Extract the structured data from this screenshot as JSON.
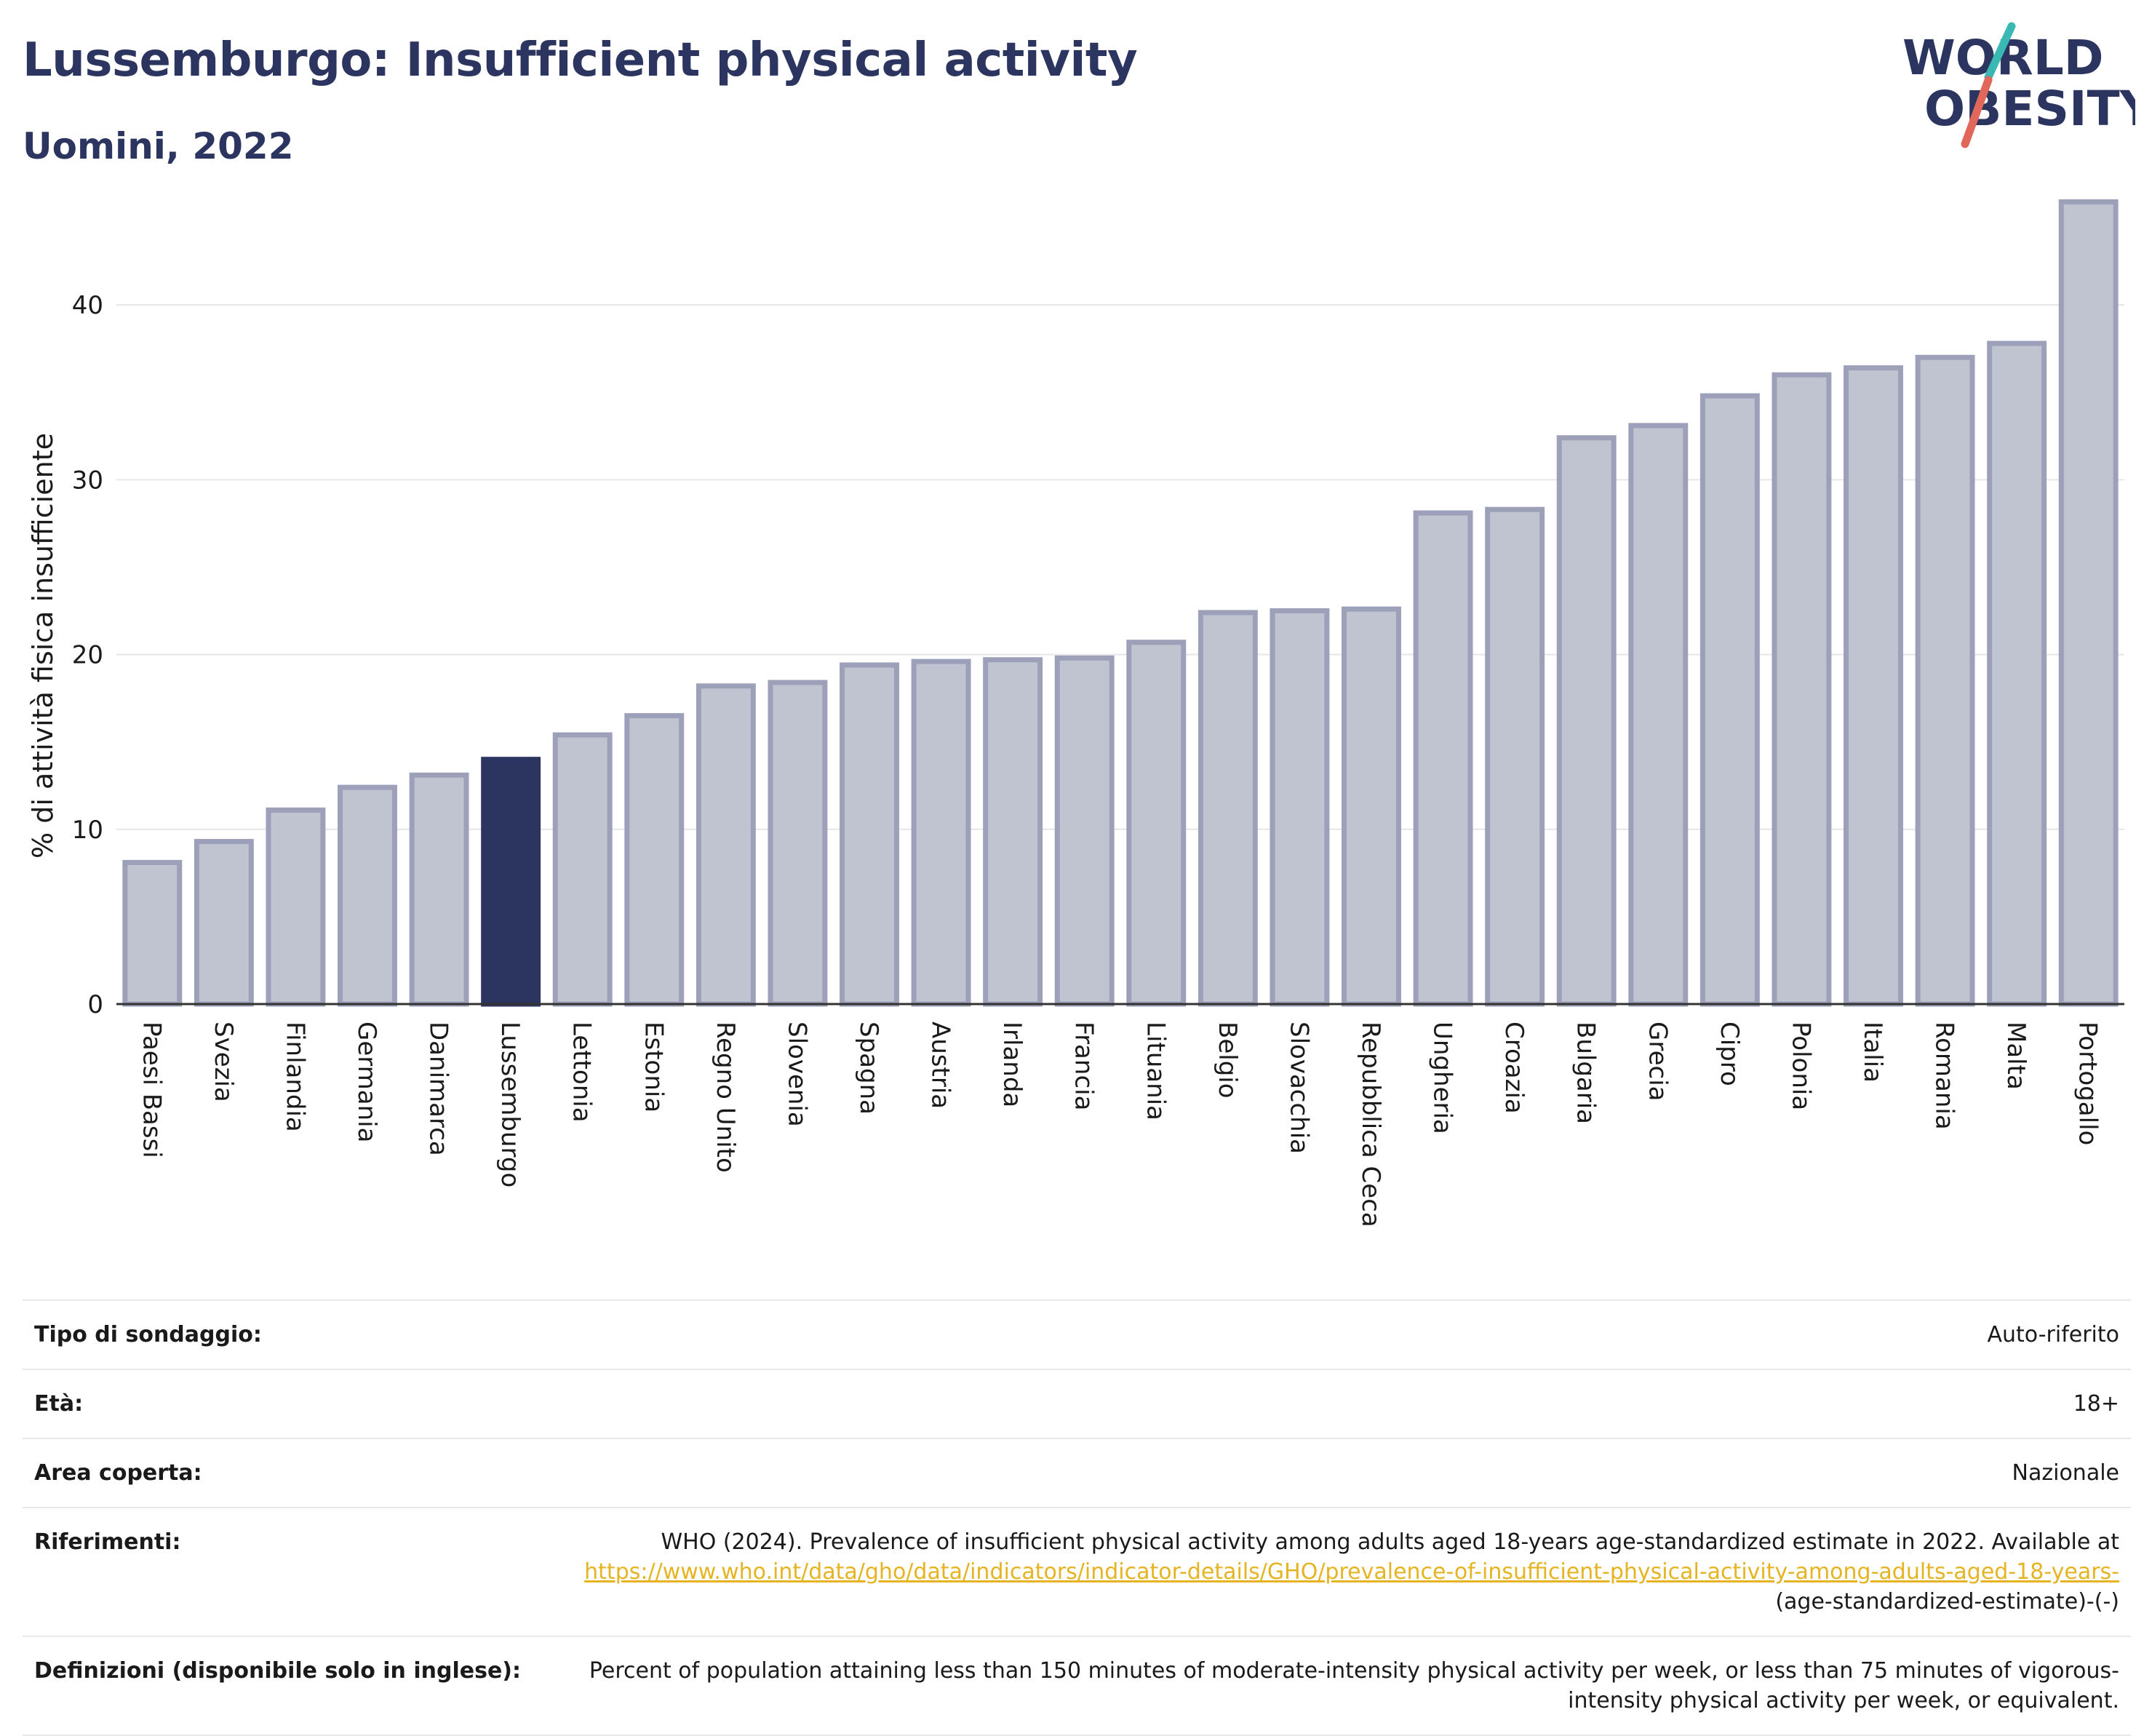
{
  "header": {
    "title": "Lussemburgo: Insufficient physical activity",
    "subtitle": "Uomini, 2022"
  },
  "logo": {
    "line1": "WORLD",
    "line2": "OBESITY",
    "colors": {
      "text": "#2b3560",
      "slash_top": "#3ab8b4",
      "slash_bottom": "#e0675a"
    }
  },
  "chart_data": {
    "type": "bar",
    "title": "Lussemburgo: Insufficient physical activity",
    "subtitle": "Uomini, 2022",
    "xlabel": "",
    "ylabel": "% di attività fisica insufficiente",
    "ylim": [
      0,
      46
    ],
    "yticks": [
      0,
      10,
      20,
      30,
      40
    ],
    "grid": true,
    "highlight": "Lussemburgo",
    "colors": {
      "bar": "#c0c3d0",
      "bar_border": "#9ca0b8",
      "highlight": "#2b3560"
    },
    "categories": [
      "Paesi Bassi",
      "Svezia",
      "Finlandia",
      "Germania",
      "Danimarca",
      "Lussemburgo",
      "Lettonia",
      "Estonia",
      "Regno Unito",
      "Slovenia",
      "Spagna",
      "Austria",
      "Irlanda",
      "Francia",
      "Lituania",
      "Belgio",
      "Slovacchia",
      "Repubblica Ceca",
      "Ungheria",
      "Croazia",
      "Bulgaria",
      "Grecia",
      "Cipro",
      "Polonia",
      "Italia",
      "Romania",
      "Malta",
      "Portogallo"
    ],
    "values": [
      8.1,
      9.3,
      11.1,
      12.4,
      13.1,
      14.0,
      15.4,
      16.5,
      18.2,
      18.4,
      19.4,
      19.6,
      19.7,
      19.8,
      20.7,
      22.4,
      22.5,
      22.6,
      28.1,
      28.3,
      32.4,
      33.1,
      34.8,
      36.0,
      36.4,
      37.0,
      37.8,
      45.9
    ]
  },
  "info": {
    "rows": [
      {
        "key": "Tipo di sondaggio:",
        "value": "Auto-riferito"
      },
      {
        "key": "Età:",
        "value": "18+"
      },
      {
        "key": "Area coperta:",
        "value": "Nazionale"
      },
      {
        "key": "Riferimenti:",
        "value_prefix": "WHO (2024). Prevalence of insufficient physical activity among adults aged 18-years age-standardized estimate in 2022. Available at ",
        "link": "https://www.who.int/data/gho/data/indicators/indicator-details/GHO/prevalence-of-insufficient-physical-activity-among-adults-aged-18-years-",
        "value_suffix": "(age-standardized-estimate)-(-)"
      },
      {
        "key": "Definizioni (disponibile solo in inglese):",
        "value": "Percent of population attaining less than 150 minutes of moderate-intensity physical activity per week, or less than 75 minutes of vigorous-intensity physical activity per week, or equivalent."
      }
    ]
  }
}
